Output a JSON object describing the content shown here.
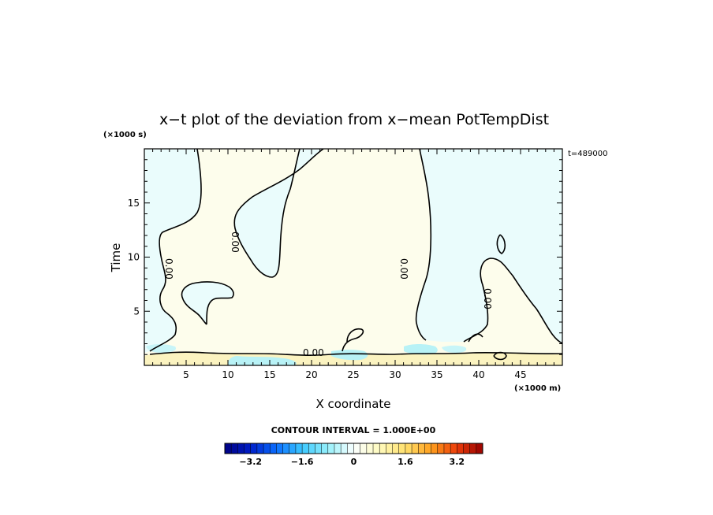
{
  "chart_data": {
    "type": "heatmap",
    "title": "x−t plot of the deviation from x−mean PotTempDist",
    "xlabel": "X coordinate",
    "ylabel": "Time",
    "x_unit": "(×1000 m)",
    "y_unit": "(×1000 s)",
    "time_stamp": "t=489000",
    "xlim": [
      0,
      50
    ],
    "ylim": [
      0,
      20
    ],
    "x_ticks": [
      5,
      10,
      15,
      20,
      25,
      30,
      35,
      40,
      45
    ],
    "y_ticks": [
      5,
      10,
      15
    ],
    "grid": false,
    "contour_interval_label": "CONTOUR INTERVAL = 1.000E+00",
    "contour_labels": [
      "0.00",
      "0.00",
      "0.00",
      "0.00",
      "0.00"
    ],
    "colorbar": {
      "vmin": -4.0,
      "vmax": 4.0,
      "step": 0.2,
      "tick_labels": [
        "−3.2",
        "−1.6",
        "0",
        "1.6",
        "3.2"
      ],
      "tick_values": [
        -3.2,
        -1.6,
        0,
        1.6,
        3.2
      ]
    },
    "regions": [
      {
        "name": "negative deviation (light cyan)",
        "value_range": [
          -0.2,
          0
        ],
        "color": "#eafcfc"
      },
      {
        "name": "positive deviation (light yellow)",
        "value_range": [
          0,
          0.2
        ],
        "color": "#fdfdec"
      },
      {
        "name": "near-surface negative band",
        "value_range": [
          -0.8,
          -0.2
        ],
        "color": "#a8f0f4"
      },
      {
        "name": "near-surface positive band",
        "value_range": [
          0.2,
          0.6
        ],
        "color": "#fbf3c0"
      }
    ]
  }
}
